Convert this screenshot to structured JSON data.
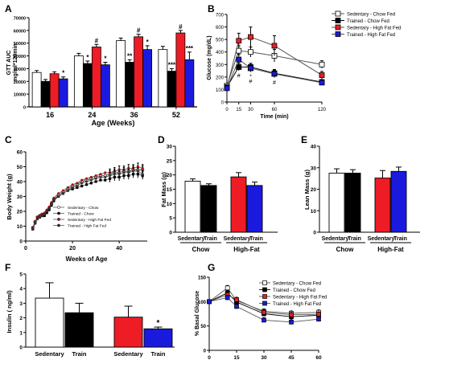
{
  "figure": {
    "panel_letters": [
      "A",
      "B",
      "C",
      "D",
      "E",
      "F",
      "G"
    ]
  },
  "colors": {
    "sedentary_chow": "#ffffff",
    "trained_chow": "#000000",
    "sedentary_hf": "#ee1c24",
    "trained_hf": "#1a1adf"
  },
  "chart_data": [
    {
      "id": "A",
      "type": "bar",
      "title": "",
      "ylabel_lines": [
        "GTT AUC",
        "mg/ml*120min"
      ],
      "xlabel": "Age (Weeks)",
      "ylim": [
        0,
        70000
      ],
      "yticks": [
        0,
        10000,
        20000,
        30000,
        40000,
        50000,
        60000,
        70000
      ],
      "ytick_labels": [
        "0",
        "10000",
        "20000",
        "30000",
        "40000",
        "50000",
        "60000",
        "70000"
      ],
      "categories": [
        "16",
        "24",
        "36",
        "52"
      ],
      "series": [
        {
          "values": [
            27000,
            40000,
            52000,
            45000
          ],
          "errors": [
            1500,
            2000,
            2000,
            2500
          ],
          "color": "#ffffff"
        },
        {
          "values": [
            20000,
            34000,
            35000,
            28000
          ],
          "errors": [
            1500,
            2000,
            2000,
            2000
          ],
          "color": "#000000"
        },
        {
          "values": [
            26000,
            47000,
            55000,
            58000
          ],
          "errors": [
            1500,
            2000,
            2000,
            2000
          ],
          "color": "#ee1c24"
        },
        {
          "values": [
            22000,
            33000,
            45000,
            37000
          ],
          "errors": [
            1500,
            2000,
            3000,
            6000
          ],
          "color": "#1a1adf"
        }
      ],
      "annotations": [
        {
          "category": 0,
          "series": 3,
          "text": "*"
        },
        {
          "category": 1,
          "series": 1,
          "text": "*"
        },
        {
          "category": 1,
          "series": 2,
          "text": "#"
        },
        {
          "category": 1,
          "series": 3,
          "text": "*"
        },
        {
          "category": 2,
          "series": 1,
          "text": "**"
        },
        {
          "category": 2,
          "series": 2,
          "text": "#"
        },
        {
          "category": 2,
          "series": 3,
          "text": "*"
        },
        {
          "category": 3,
          "series": 1,
          "text": "***"
        },
        {
          "category": 3,
          "series": 2,
          "text": "#"
        },
        {
          "category": 3,
          "series": 3,
          "text": "***"
        }
      ]
    },
    {
      "id": "B",
      "type": "line",
      "title": "",
      "ylabel": "Glucose (mg/dL)",
      "xlabel": "Time (min)",
      "x": [
        0,
        15,
        30,
        60,
        120
      ],
      "ylim": [
        0,
        700
      ],
      "yticks": [
        0,
        100,
        200,
        300,
        400,
        500,
        600,
        700
      ],
      "ytick_labels": [
        "0",
        "100",
        "200",
        "300",
        "400",
        "500",
        "600",
        "700"
      ],
      "xticks": [
        0,
        15,
        30,
        60,
        120
      ],
      "xtick_labels": [
        "0",
        "15",
        "30",
        "60",
        "120"
      ],
      "series": [
        {
          "name": "Sedentary - Chow Fed",
          "values": [
            130,
            410,
            400,
            370,
            300
          ],
          "errors": [
            15,
            40,
            40,
            50,
            30
          ],
          "color": "#ffffff",
          "line": "#555555"
        },
        {
          "name": "Trained - Chow Fed",
          "values": [
            120,
            280,
            280,
            230,
            160
          ],
          "errors": [
            15,
            30,
            30,
            30,
            20
          ],
          "color": "#000000",
          "line": "#000000"
        },
        {
          "name": "Sedentary - High Fat Fed",
          "values": [
            115,
            490,
            520,
            450,
            215
          ],
          "errors": [
            15,
            60,
            80,
            80,
            30
          ],
          "color": "#ee1c24",
          "line": "#555555"
        },
        {
          "name": "Trained - High Fat Fed",
          "values": [
            110,
            340,
            270,
            225,
            155
          ],
          "errors": [
            15,
            40,
            30,
            30,
            20
          ],
          "color": "#1a1adf",
          "line": "#555555"
        }
      ],
      "annotations": [
        {
          "x": 15,
          "y": 240,
          "text": "***"
        },
        {
          "x": 15,
          "y": 195,
          "text": "#"
        },
        {
          "x": 30,
          "y": 230,
          "text": "***"
        },
        {
          "x": 30,
          "y": 190,
          "text": "*"
        },
        {
          "x": 30,
          "y": 150,
          "text": "#"
        },
        {
          "x": 60,
          "y": 190,
          "text": "***"
        },
        {
          "x": 60,
          "y": 140,
          "text": "#"
        }
      ]
    },
    {
      "id": "C",
      "type": "scatter",
      "title": "",
      "ylabel": "Body Weight (g)",
      "xlabel": "Weeks of Age",
      "xlim": [
        0,
        52
      ],
      "xticks": [
        0,
        20,
        40
      ],
      "xtick_labels": [
        "0",
        "20",
        "40"
      ],
      "ylim": [
        0,
        60
      ],
      "yticks": [
        0,
        10,
        20,
        30,
        40,
        50,
        60
      ],
      "ytick_labels": [
        "0",
        "10",
        "20",
        "30",
        "40",
        "50",
        "60"
      ],
      "series": [
        {
          "name": "Sedentary - Chow",
          "marker": "open-circle",
          "color": "#ffffff",
          "x": [
            3,
            4,
            5,
            6,
            7,
            8,
            9,
            10,
            11,
            12,
            14,
            16,
            18,
            20,
            22,
            24,
            26,
            28,
            30,
            32,
            34,
            36,
            38,
            40,
            42,
            44,
            46,
            48,
            50
          ],
          "y": [
            9,
            13,
            16,
            17,
            18,
            18,
            20,
            22,
            25,
            28,
            31,
            33,
            35,
            37,
            38,
            40,
            41,
            42,
            43,
            44,
            44,
            45,
            46,
            46,
            47,
            47,
            48,
            48,
            48
          ]
        },
        {
          "name": "Trained - Chow",
          "marker": "square",
          "color": "#000000",
          "x": [
            3,
            4,
            5,
            6,
            7,
            8,
            9,
            10,
            11,
            12,
            14,
            16,
            18,
            20,
            22,
            24,
            26,
            28,
            30,
            32,
            34,
            36,
            38,
            40,
            42,
            44,
            46,
            48,
            50
          ],
          "y": [
            8,
            12,
            15,
            16,
            17,
            17,
            19,
            21,
            24,
            27,
            30,
            32,
            34,
            35,
            36,
            37,
            38,
            39,
            40,
            41,
            41,
            42,
            43,
            43,
            44,
            44,
            45,
            45,
            44
          ]
        },
        {
          "name": "Sedentary - High Fat Fed",
          "marker": "dot",
          "color": "#b00000",
          "x": [
            3,
            4,
            5,
            6,
            7,
            8,
            9,
            10,
            11,
            12,
            14,
            16,
            18,
            20,
            22,
            24,
            26,
            28,
            30,
            32,
            34,
            36,
            38,
            40,
            42,
            44,
            46,
            48,
            50
          ],
          "y": [
            9,
            13,
            16,
            17,
            18,
            19,
            21,
            23,
            26,
            29,
            32,
            34,
            36,
            38,
            39,
            41,
            42,
            43,
            44,
            45,
            46,
            46,
            47,
            48,
            48,
            49,
            49,
            50,
            49
          ]
        },
        {
          "name": "Trained - High Fat Fed",
          "marker": "diamond",
          "color": "#333333",
          "x": [
            3,
            4,
            5,
            6,
            7,
            8,
            9,
            10,
            11,
            12,
            14,
            16,
            18,
            20,
            22,
            24,
            26,
            28,
            30,
            32,
            34,
            36,
            38,
            40,
            42,
            44,
            46,
            48,
            50
          ],
          "y": [
            8,
            12,
            15,
            16,
            17,
            18,
            20,
            22,
            25,
            28,
            30,
            32,
            34,
            36,
            37,
            39,
            40,
            41,
            42,
            43,
            43,
            44,
            45,
            45,
            46,
            46,
            47,
            47,
            45
          ]
        }
      ]
    },
    {
      "id": "D",
      "type": "bar",
      "title": "",
      "ylabel": "Fat Mass (g)",
      "ylim": [
        0,
        30
      ],
      "yticks": [
        0,
        5,
        10,
        15,
        20,
        25,
        30
      ],
      "ytick_labels": [
        "0",
        "5",
        "10",
        "15",
        "20",
        "25",
        "30"
      ],
      "bar_labels": [
        "Sedentary",
        "Train",
        "Sedentary",
        "Train"
      ],
      "group_labels": [
        "Chow",
        "High-Fat"
      ],
      "values": [
        17.8,
        16.3,
        19.3,
        16.3
      ],
      "errors": [
        0.8,
        0.6,
        1.5,
        1.2
      ],
      "colors": [
        "#ffffff",
        "#000000",
        "#ee1c24",
        "#1a1adf"
      ]
    },
    {
      "id": "E",
      "type": "bar",
      "title": "",
      "ylabel": "Lean Mass (g)",
      "ylim": [
        0,
        40
      ],
      "yticks": [
        0,
        10,
        20,
        30,
        40
      ],
      "ytick_labels": [
        "0",
        "10",
        "20",
        "30",
        "40"
      ],
      "bar_labels": [
        "Sedentary",
        "Train",
        "Sedentary",
        "Train"
      ],
      "group_labels": [
        "Chow",
        "High-Fat"
      ],
      "values": [
        27.5,
        27.5,
        25.2,
        28.3
      ],
      "errors": [
        2.0,
        1.6,
        3.5,
        2.0
      ],
      "colors": [
        "#ffffff",
        "#000000",
        "#ee1c24",
        "#1a1adf"
      ]
    },
    {
      "id": "F",
      "type": "bar",
      "title": "",
      "ylabel": "Insulin ( ng/ml)",
      "ylim": [
        0,
        5
      ],
      "yticks": [
        0,
        1,
        2,
        3,
        4,
        5
      ],
      "ytick_labels": [
        "0",
        "1",
        "2",
        "3",
        "4",
        "5"
      ],
      "bar_labels": [
        "Sedentary",
        "Train",
        "Sedentary",
        "Train"
      ],
      "values": [
        3.35,
        2.35,
        2.05,
        1.25
      ],
      "errors": [
        1.05,
        0.65,
        0.75,
        0.12
      ],
      "colors": [
        "#ffffff",
        "#000000",
        "#ee1c24",
        "#1a1adf"
      ],
      "annotations": [
        {
          "bar": 3,
          "text": "*"
        }
      ]
    },
    {
      "id": "G",
      "type": "line",
      "title": "",
      "ylabel": "% Basal Glucose",
      "x": [
        0,
        10,
        15,
        30,
        45,
        60
      ],
      "xlim": [
        0,
        60
      ],
      "xticks": [
        0,
        15,
        30,
        45,
        60
      ],
      "xtick_labels": [
        "0",
        "15",
        "30",
        "45",
        "60"
      ],
      "ylim": [
        0,
        150
      ],
      "yticks": [
        0,
        50,
        100,
        150
      ],
      "ytick_labels": [
        "0",
        "50",
        "100",
        "150"
      ],
      "series": [
        {
          "name": "Sedentary - Chow Fed",
          "values": [
            100,
            128,
            102,
            80,
            76,
            78
          ],
          "color": "#ffffff",
          "line": "#555555"
        },
        {
          "name": "Trained - Chow Fed",
          "values": [
            100,
            118,
            99,
            75,
            69,
            72
          ],
          "color": "#000000",
          "line": "#000000"
        },
        {
          "name": "Sedentary - High Fat Fed",
          "values": [
            100,
            114,
            104,
            78,
            73,
            74
          ],
          "color": "#ee1c24",
          "line": "#555555"
        },
        {
          "name": "Trained - High Fat Fed",
          "values": [
            100,
            108,
            90,
            62,
            58,
            64
          ],
          "color": "#1a1adf",
          "line": "#555555"
        }
      ]
    }
  ]
}
